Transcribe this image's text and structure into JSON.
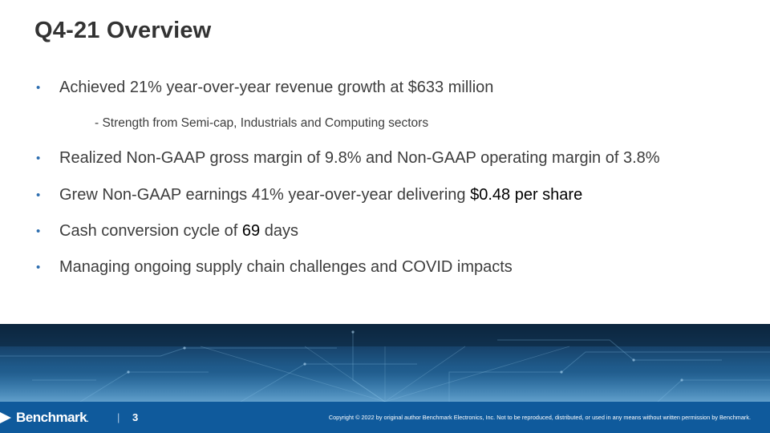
{
  "slide": {
    "title": "Q4-21 Overview"
  },
  "bullets": [
    {
      "text": "Achieved 21% year-over-year revenue growth at $633 million"
    },
    {
      "text": "Realized Non-GAAP gross margin of 9.8% and Non-GAAP operating margin of 3.8%"
    },
    {
      "text_before": "Grew Non-GAAP earnings 41% year-over-year delivering ",
      "highlight": "$0.48 per share"
    },
    {
      "text_before": "Cash conversion cycle of ",
      "highlight": "69",
      "text_after": " days"
    },
    {
      "text": "Managing ongoing supply chain challenges and COVID impacts"
    }
  ],
  "sub_bullet": "- Strength from Semi-cap, Industrials and Computing sectors",
  "bullet_symbol": "•",
  "footer": {
    "logo_text": "Benchmark",
    "logo_dot": ".",
    "separator": "|",
    "page_number": "3",
    "copyright": "Copyright © 2022 by original author Benchmark Electronics, Inc. Not to be reproduced, distributed, or used in any means without written permission by Benchmark."
  },
  "colors": {
    "bullet_accent": "#2f6fb0",
    "footer_bar": "#0f5a9c",
    "banner_dark": "#0d2a45"
  }
}
